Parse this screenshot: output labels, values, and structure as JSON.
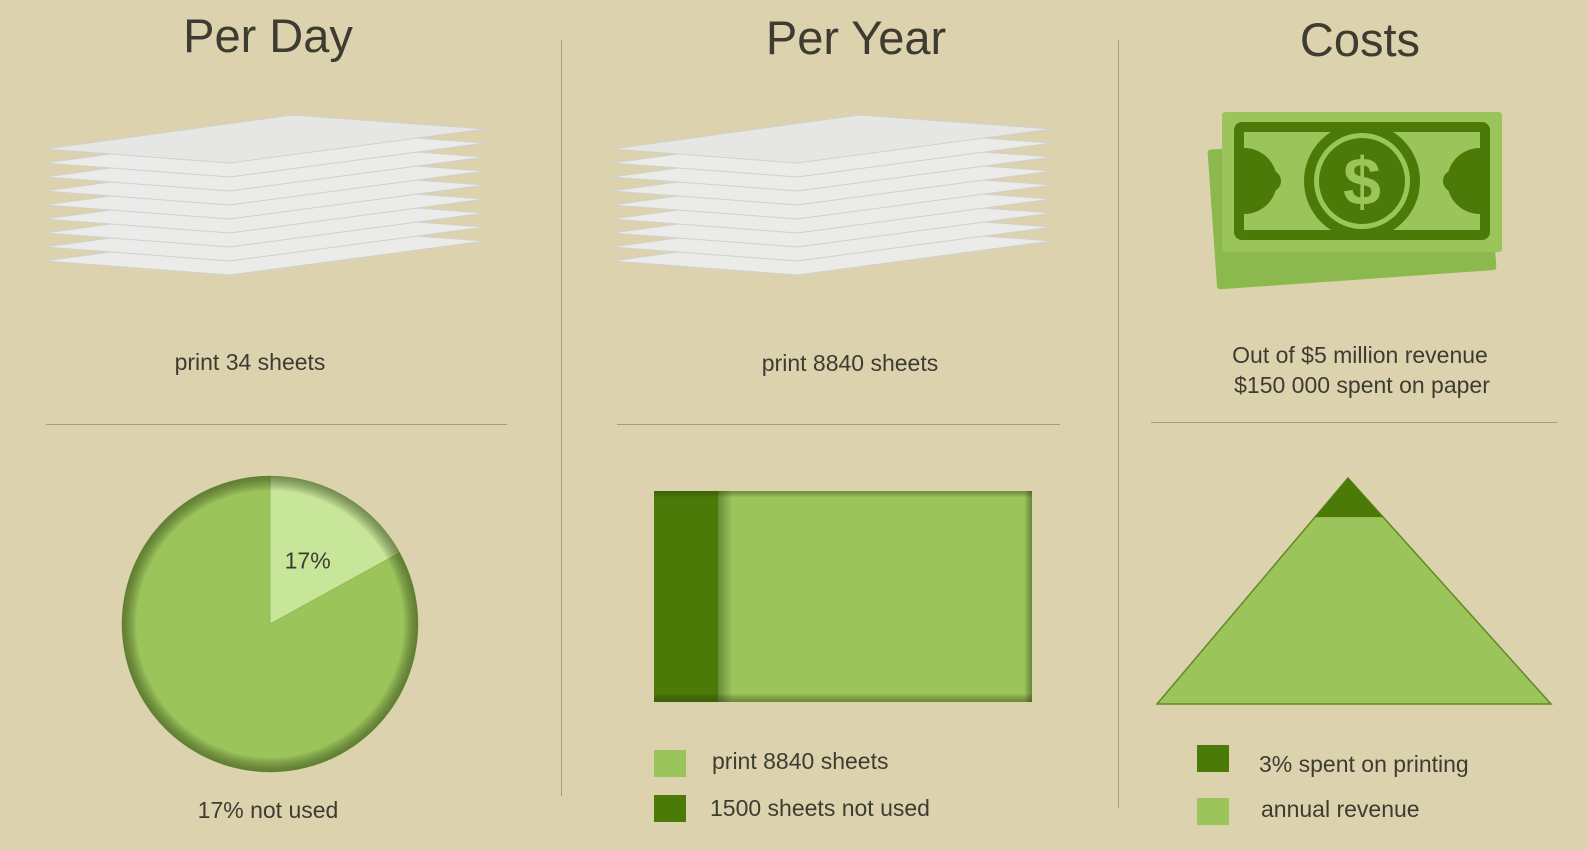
{
  "colors": {
    "background": "#dcd3ae",
    "light_green": "#9bc45a",
    "pale_green": "#c8e699",
    "dark_green": "#4b7a08",
    "paper": "#ebebea",
    "text": "#3e3c31"
  },
  "per_day": {
    "title": "Per Day",
    "icon": "paper-stack-icon",
    "caption": "print 34 sheets",
    "pie_caption": "17% not used"
  },
  "per_year": {
    "title": "Per Year",
    "icon": "paper-stack-icon",
    "caption": "print 8840 sheets",
    "legend": [
      {
        "label": "print 8840 sheets",
        "color": "#9bc45a"
      },
      {
        "label": "1500 sheets not used",
        "color": "#4b7a08"
      }
    ]
  },
  "costs": {
    "title": "Costs",
    "icon": "money-bill-icon",
    "caption_line1": "Out of $5 million revenue",
    "caption_line2": "$150 000 spent on paper",
    "legend": [
      {
        "label": "3% spent on printing",
        "color": "#4b7a08"
      },
      {
        "label": "annual revenue",
        "color": "#9bc45a"
      }
    ]
  },
  "chart_data": [
    {
      "type": "pie",
      "title": "",
      "slices": [
        {
          "label": "17%",
          "value": 17,
          "color": "#c8e699"
        },
        {
          "label": "",
          "value": 83,
          "color": "#9bc45a"
        }
      ]
    },
    {
      "type": "bar",
      "title": "",
      "stacked": true,
      "orientation": "horizontal",
      "series": [
        {
          "name": "1500 sheets not used",
          "values": [
            1500
          ],
          "color": "#4b7a08"
        },
        {
          "name": "print 8840 sheets",
          "values": [
            8840
          ],
          "color": "#9bc45a"
        }
      ],
      "total": 8840
    },
    {
      "type": "area",
      "shape": "triangle",
      "title": "",
      "series": [
        {
          "name": "3% spent on printing",
          "values": [
            3
          ],
          "color": "#4b7a08"
        },
        {
          "name": "annual revenue",
          "values": [
            100
          ],
          "color": "#9bc45a"
        }
      ]
    }
  ]
}
